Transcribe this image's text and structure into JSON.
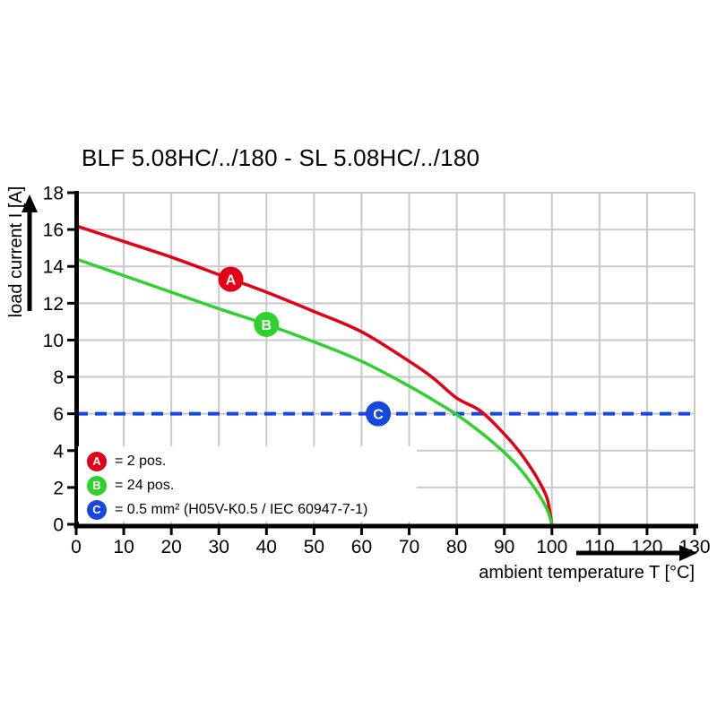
{
  "title": "BLF 5.08HC/../180 - SL 5.08HC/../180",
  "chart_data": {
    "type": "line",
    "title": "BLF 5.08HC/../180 - SL 5.08HC/../180",
    "xlabel": "ambient temperature T [°C]",
    "ylabel": "load current I [A]",
    "xlim": [
      0,
      130
    ],
    "ylim": [
      0,
      18
    ],
    "xticks": [
      0,
      10,
      20,
      30,
      40,
      50,
      60,
      70,
      80,
      90,
      100,
      110,
      120,
      130
    ],
    "yticks": [
      0,
      2,
      4,
      6,
      8,
      10,
      12,
      14,
      16,
      18
    ],
    "grid": true,
    "legend_position": "bottom-left",
    "colors": {
      "grid": "#c9c9c9",
      "axis": "#000000",
      "red": "#e20017",
      "green": "#2fd12f",
      "blue": "#1747dd"
    },
    "series": [
      {
        "marker": "A",
        "label": "= 2 pos.",
        "color": "#e20017",
        "style": "solid",
        "marker_at": [
          32.5,
          13.3
        ],
        "points": [
          [
            0,
            16.2
          ],
          [
            10,
            15.35
          ],
          [
            20,
            14.5
          ],
          [
            30,
            13.55
          ],
          [
            40,
            12.6
          ],
          [
            50,
            11.55
          ],
          [
            60,
            10.45
          ],
          [
            70,
            8.85
          ],
          [
            75,
            7.95
          ],
          [
            80,
            6.85
          ],
          [
            85,
            6.15
          ],
          [
            90,
            4.9
          ],
          [
            93,
            4.0
          ],
          [
            96,
            2.9
          ],
          [
            98,
            2.0
          ],
          [
            99,
            1.4
          ],
          [
            99.5,
            0.8
          ],
          [
            100,
            0
          ]
        ]
      },
      {
        "marker": "B",
        "label": "= 24 pos.",
        "color": "#2fd12f",
        "style": "solid",
        "marker_at": [
          40,
          10.85
        ],
        "points": [
          [
            0,
            14.4
          ],
          [
            10,
            13.5
          ],
          [
            20,
            12.6
          ],
          [
            30,
            11.7
          ],
          [
            40,
            10.85
          ],
          [
            50,
            9.9
          ],
          [
            60,
            8.85
          ],
          [
            70,
            7.5
          ],
          [
            75,
            6.75
          ],
          [
            80,
            5.95
          ],
          [
            85,
            5.0
          ],
          [
            90,
            3.9
          ],
          [
            93,
            3.1
          ],
          [
            96,
            2.1
          ],
          [
            98,
            1.3
          ],
          [
            99,
            0.8
          ],
          [
            99.5,
            0.45
          ],
          [
            100,
            0
          ]
        ]
      },
      {
        "marker": "C",
        "label": "= 0.5 mm² (H05V-K0.5 / IEC 60947-7-1)",
        "color": "#1747dd",
        "style": "dashed",
        "marker_at": [
          63.5,
          6
        ],
        "points": [
          [
            0,
            6
          ],
          [
            130,
            6
          ]
        ]
      }
    ]
  }
}
